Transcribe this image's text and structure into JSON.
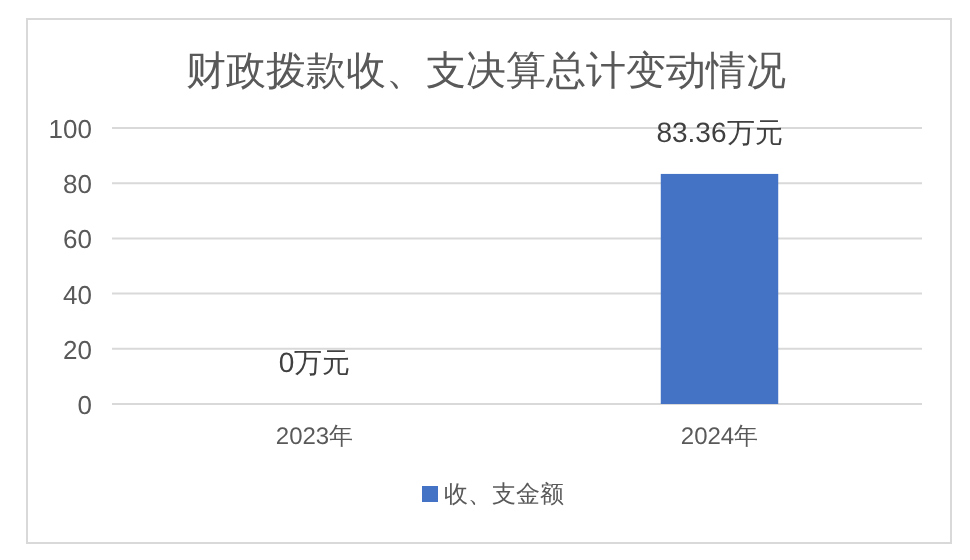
{
  "chart_data": {
    "type": "bar",
    "title": "财政拨款收、支决算总计变动情况",
    "categories": [
      "2023年",
      "2024年"
    ],
    "series": [
      {
        "name": "收、支金额",
        "color": "#4472c4",
        "values": [
          0,
          83.36
        ],
        "value_labels": [
          "0万元",
          "83.36万元"
        ]
      }
    ],
    "ylim": [
      0,
      100
    ],
    "yticks": [
      0,
      20,
      40,
      60,
      80,
      100
    ],
    "grid": "y",
    "legend": "bottom"
  }
}
